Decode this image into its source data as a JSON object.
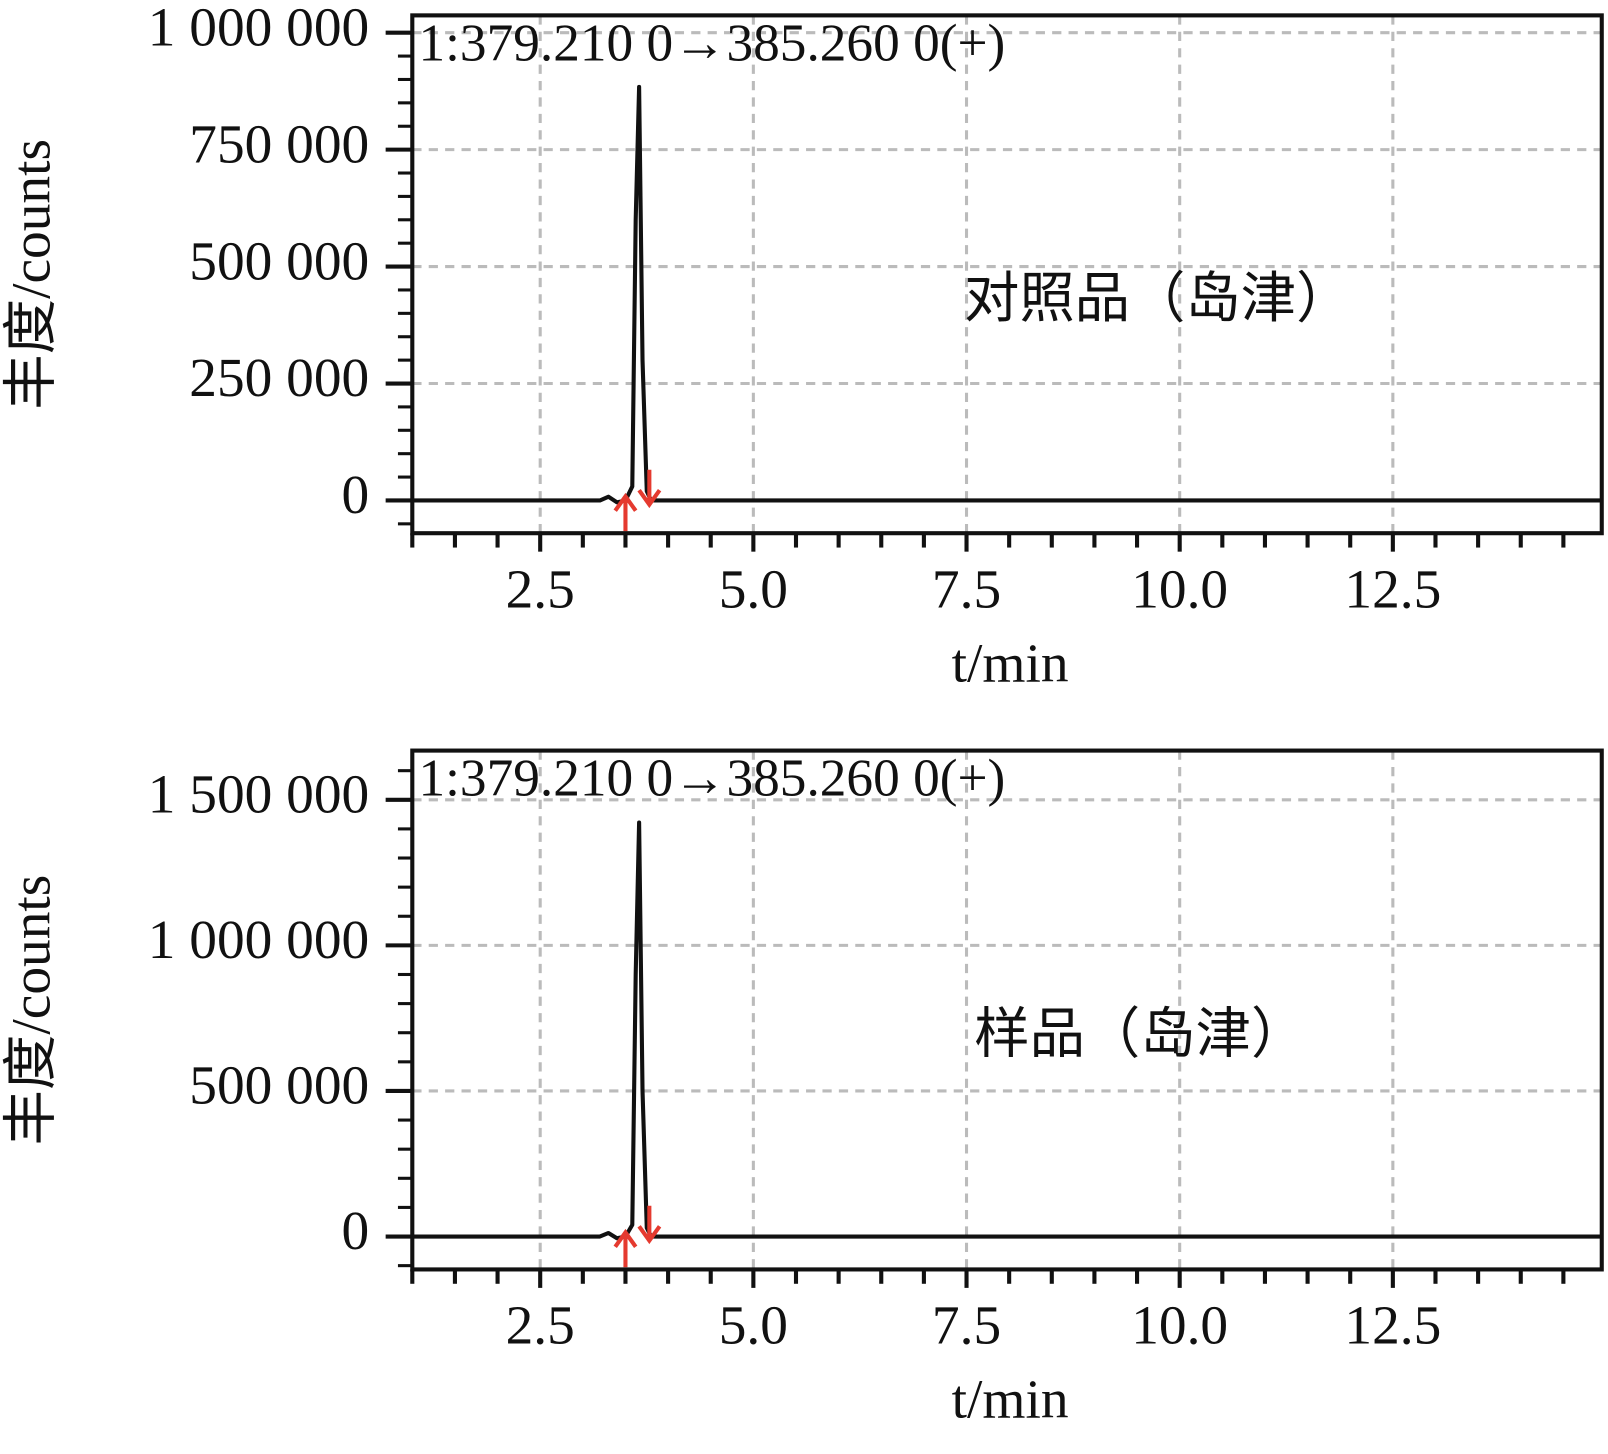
{
  "chart_data": [
    {
      "type": "line",
      "title": "1:379.210 0→385.260 0(+)",
      "annotation": "对照品（岛津）",
      "xlabel": "t/min",
      "ylabel": "丰度/counts",
      "x": [
        1.0,
        3.2,
        3.3,
        3.4,
        3.5,
        3.58,
        3.62,
        3.66,
        3.7,
        3.75,
        3.8,
        14.95
      ],
      "series": [
        {
          "color": "#111111",
          "values": [
            0,
            0,
            8000,
            -4000,
            0,
            30000,
            600000,
            884000,
            300000,
            20000,
            0,
            0
          ]
        }
      ],
      "integration_marks": [
        3.5,
        3.78
      ],
      "integration_color": "#e53a2f",
      "xlim": [
        1.0,
        14.95
      ],
      "ylim": [
        -70000,
        1037000
      ],
      "xticks": [
        2.5,
        {
          "value": 5,
          "label": "5.0"
        },
        7.5,
        {
          "value": 10,
          "label": "10.0"
        },
        12.5
      ],
      "xminorticks": [
        1.0,
        1.5,
        2.0,
        3.0,
        3.5,
        4.0,
        4.5,
        5.5,
        6.0,
        6.5,
        7.0,
        8.0,
        8.5,
        9.0,
        9.5,
        10.5,
        11.0,
        11.5,
        12.0,
        13.0,
        13.5,
        14.0,
        14.5
      ],
      "yticks": [
        0,
        {
          "value": 250000,
          "label": "250 000"
        },
        {
          "value": 500000,
          "label": "500 000"
        },
        {
          "value": 750000,
          "label": "750 000"
        },
        {
          "value": 1000000,
          "label": "1 000 000"
        }
      ],
      "yminorticks": [
        -50000,
        50000,
        100000,
        150000,
        200000,
        300000,
        350000,
        400000,
        450000,
        550000,
        600000,
        650000,
        700000,
        800000,
        850000,
        900000,
        950000
      ],
      "grid": true
    },
    {
      "type": "line",
      "title": "1:379.210 0→385.260 0(+)",
      "annotation": "样品（岛津）",
      "xlabel": "t/min",
      "ylabel": "丰度/counts",
      "x": [
        1.0,
        3.2,
        3.3,
        3.4,
        3.5,
        3.58,
        3.62,
        3.66,
        3.7,
        3.75,
        3.8,
        14.95
      ],
      "series": [
        {
          "color": "#111111",
          "values": [
            0,
            0,
            12000,
            -6000,
            0,
            40000,
            900000,
            1422000,
            500000,
            30000,
            0,
            0
          ]
        }
      ],
      "integration_marks": [
        3.5,
        3.78
      ],
      "integration_color": "#e53a2f",
      "xlim": [
        1.0,
        14.95
      ],
      "ylim": [
        -113000,
        1669000
      ],
      "xticks": [
        2.5,
        {
          "value": 5,
          "label": "5.0"
        },
        7.5,
        {
          "value": 10,
          "label": "10.0"
        },
        12.5
      ],
      "xminorticks": [
        1.0,
        1.5,
        2.0,
        3.0,
        3.5,
        4.0,
        4.5,
        5.5,
        6.0,
        6.5,
        7.0,
        8.0,
        8.5,
        9.0,
        9.5,
        10.5,
        11.0,
        11.5,
        12.0,
        13.0,
        13.5,
        14.0,
        14.5
      ],
      "yticks": [
        0,
        {
          "value": 500000,
          "label": "500 000"
        },
        {
          "value": 1000000,
          "label": "1 000 000"
        },
        {
          "value": 1500000,
          "label": "1 500 000"
        }
      ],
      "yminorticks": [
        -100000,
        100000,
        200000,
        300000,
        400000,
        600000,
        700000,
        800000,
        900000,
        1100000,
        1200000,
        1300000,
        1400000,
        1600000
      ],
      "grid": true
    }
  ]
}
